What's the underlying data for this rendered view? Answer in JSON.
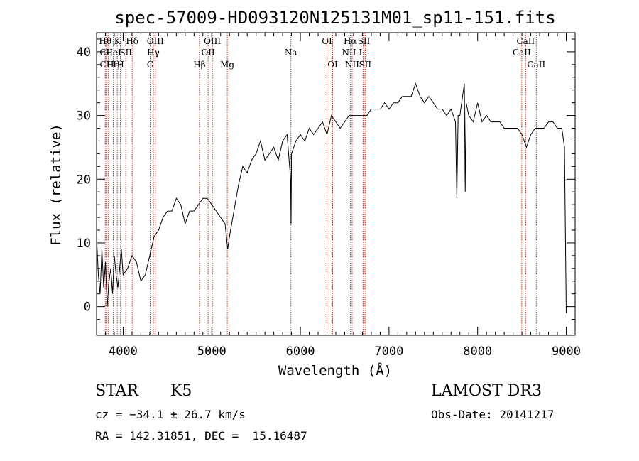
{
  "chart_data": {
    "type": "line",
    "title": "spec-57009-HD093120N125131M01_sp11-151.fits",
    "xlabel": "Wavelength (Å)",
    "ylabel": "Flux (relative)",
    "xlim": [
      3700,
      9100
    ],
    "ylim": [
      -4.5,
      43
    ],
    "xticks": [
      4000,
      5000,
      6000,
      7000,
      8000,
      9000
    ],
    "yticks": [
      0,
      10,
      20,
      30,
      40
    ],
    "grid": false,
    "series": [
      {
        "x": [
          3700,
          3720,
          3740,
          3760,
          3780,
          3800,
          3820,
          3840,
          3860,
          3880,
          3900,
          3920,
          3940,
          3960,
          3980,
          4000,
          4050,
          4100,
          4150,
          4200,
          4250,
          4300,
          4350,
          4400,
          4450,
          4500,
          4550,
          4600,
          4650,
          4700,
          4750,
          4800,
          4850,
          4900,
          4950,
          5000,
          5050,
          5100,
          5150,
          5180,
          5200,
          5250,
          5300,
          5350,
          5400,
          5450,
          5500,
          5550,
          5600,
          5650,
          5700,
          5750,
          5800,
          5850,
          5890,
          5895,
          5900,
          5950,
          6000,
          6050,
          6100,
          6150,
          6200,
          6250,
          6300,
          6350,
          6400,
          6450,
          6500,
          6550,
          6600,
          6650,
          6700,
          6750,
          6800,
          6850,
          6900,
          6950,
          7000,
          7050,
          7100,
          7150,
          7200,
          7250,
          7300,
          7350,
          7400,
          7450,
          7500,
          7550,
          7600,
          7650,
          7700,
          7750,
          7765,
          7780,
          7800,
          7850,
          7860,
          7870,
          7900,
          7950,
          8000,
          8050,
          8100,
          8150,
          8200,
          8250,
          8300,
          8350,
          8400,
          8450,
          8500,
          8550,
          8600,
          8650,
          8700,
          8750,
          8800,
          8850,
          8900,
          8950,
          8980,
          9000
        ],
        "y": [
          11,
          5,
          2,
          9,
          3,
          7,
          0,
          4,
          6,
          2,
          8,
          5,
          3,
          6,
          9,
          5,
          6,
          8,
          7,
          4,
          5,
          8,
          11,
          12,
          14,
          15,
          15,
          17,
          16,
          13,
          15,
          15,
          16,
          17,
          17,
          16,
          15,
          14,
          13,
          9,
          11,
          15,
          19,
          22,
          21,
          23,
          24,
          26,
          23,
          24,
          25,
          23,
          26,
          27,
          20,
          13,
          24,
          26,
          27,
          26,
          28,
          27,
          28,
          29,
          27,
          30,
          29,
          28,
          29,
          30,
          30,
          30,
          30,
          30,
          31,
          31,
          31,
          32,
          31,
          32,
          32,
          33,
          33,
          33,
          35,
          33,
          32,
          33,
          32,
          31,
          31,
          30,
          31,
          29,
          17,
          30,
          30,
          35,
          18,
          32,
          30,
          29,
          32,
          29,
          30,
          29,
          29,
          29,
          28,
          28,
          28,
          28,
          27,
          25,
          27,
          28,
          28,
          28,
          29,
          29,
          28,
          28,
          25,
          -1
        ]
      }
    ],
    "line_ids": [
      {
        "name": "Hθ",
        "wave": 3798,
        "row": 1
      },
      {
        "name": "CII",
        "wave": 3810,
        "row": 2
      },
      {
        "name": "CIII",
        "wave": 3830,
        "row": 3
      },
      {
        "name": "Hη",
        "wave": 3889,
        "row": 3
      },
      {
        "name": "HeI",
        "wave": 3889,
        "row": 2
      },
      {
        "name": "K",
        "wave": 3934,
        "row": 1
      },
      {
        "name": "H",
        "wave": 3969,
        "row": 3
      },
      {
        "name": "SII",
        "wave": 4030,
        "row": 2
      },
      {
        "name": "Hδ",
        "wave": 4102,
        "row": 1
      },
      {
        "name": "G",
        "wave": 4305,
        "row": 3
      },
      {
        "name": "OIII",
        "wave": 4363,
        "row": 1
      },
      {
        "name": "Hγ",
        "wave": 4341,
        "row": 2
      },
      {
        "name": "Hβ",
        "wave": 4861,
        "row": 3
      },
      {
        "name": "OIII",
        "wave": 5007,
        "row": 1
      },
      {
        "name": "OII",
        "wave": 4959,
        "row": 2
      },
      {
        "name": "Mg",
        "wave": 5175,
        "row": 3
      },
      {
        "name": "Na",
        "wave": 5893,
        "row": 2
      },
      {
        "name": "OI",
        "wave": 6300,
        "row": 1
      },
      {
        "name": "OI",
        "wave": 6364,
        "row": 3
      },
      {
        "name": "Hα",
        "wave": 6563,
        "row": 1
      },
      {
        "name": "NII",
        "wave": 6548,
        "row": 2
      },
      {
        "name": "NII",
        "wave": 6584,
        "row": 3
      },
      {
        "name": "SII",
        "wave": 6717,
        "row": 1
      },
      {
        "name": "Li",
        "wave": 6708,
        "row": 2
      },
      {
        "name": "SII",
        "wave": 6731,
        "row": 3
      },
      {
        "name": "CaII",
        "wave": 8542,
        "row": 1
      },
      {
        "name": "CaII",
        "wave": 8498,
        "row": 2
      },
      {
        "name": "CaII",
        "wave": 8662,
        "row": 3
      }
    ]
  },
  "info": {
    "obj_class": "STAR",
    "subclass": "K5",
    "survey": "LAMOST DR3",
    "cz": "cz = −34.1 ± 26.7 km/s",
    "obs_date": "Obs-Date: 20141217",
    "radec": "RA = 142.31851, DEC =  15.16487"
  },
  "colors": {
    "line_marker": "#c0392b",
    "spectrum": "#000000"
  }
}
